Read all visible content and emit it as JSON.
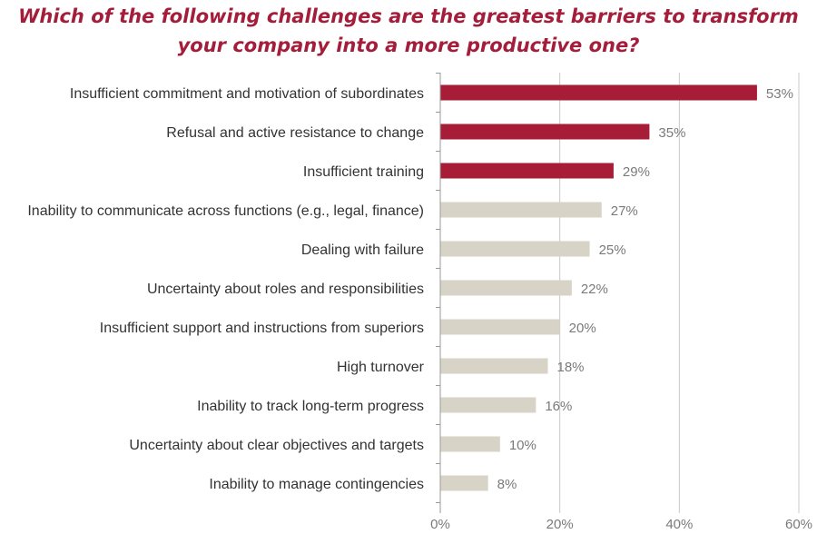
{
  "chart_data": {
    "type": "bar",
    "orientation": "horizontal",
    "title_lines": [
      "Which of the following challenges are the greatest barriers to transform",
      "your company into a more productive one?"
    ],
    "categories": [
      "Insufficient commitment and motivation of subordinates",
      "Refusal and active resistance to change",
      "Insufficient training",
      "Inability to communicate across functions (e.g., legal, finance)",
      "Dealing with failure",
      "Uncertainty about roles and responsibilities",
      "Insufficient support and instructions from superiors",
      "High turnover",
      "Inability to track long-term progress",
      "Uncertainty about clear objectives and targets",
      "Inability to manage contingencies"
    ],
    "values": [
      53,
      35,
      29,
      27,
      25,
      22,
      20,
      18,
      16,
      10,
      8
    ],
    "value_labels": [
      "53%",
      "35%",
      "29%",
      "27%",
      "25%",
      "22%",
      "20%",
      "18%",
      "16%",
      "10%",
      "8%"
    ],
    "highlighted_count": 3,
    "xlim": [
      0,
      60
    ],
    "xticks": [
      0,
      20,
      40,
      60
    ],
    "xtick_labels": [
      "0%",
      "20%",
      "40%",
      "60%"
    ],
    "grid": true,
    "colors": {
      "highlight": "#a71d37",
      "normal": "#d8d3c7",
      "title": "#a41d3a",
      "grid": "#c9c9c9"
    }
  }
}
